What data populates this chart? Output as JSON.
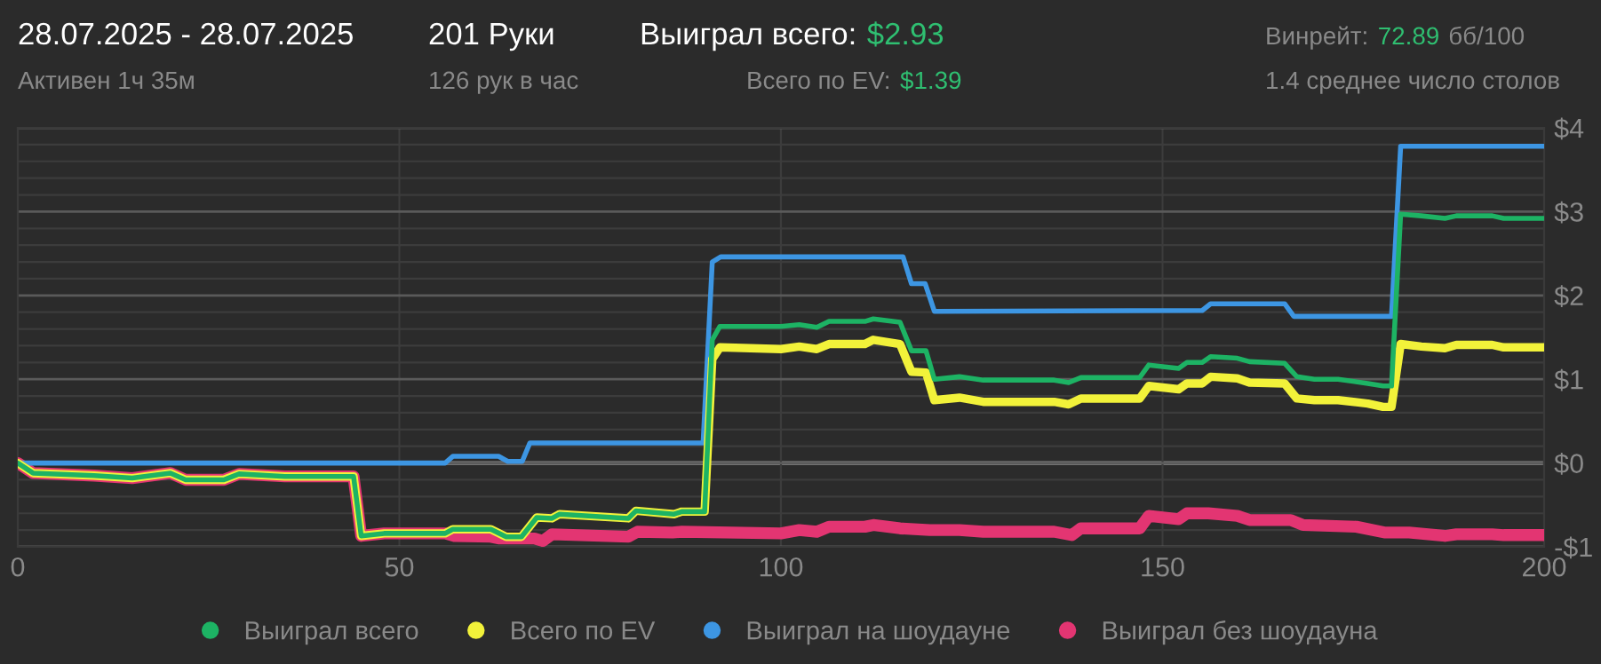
{
  "chart_data": {
    "type": "line",
    "title": "28.07.2025 - 28.07.2025",
    "subtitle": "Активен 1ч 35м",
    "annotations": [
      "201 Руки",
      "126 рук в час",
      "Выиграл всего:",
      "$2.93",
      "Всего по EV:",
      "$1.39",
      "Винрейт:",
      "72.89",
      "бб/100",
      "1.4 среднее число столов"
    ],
    "xlim": [
      0,
      200
    ],
    "ylim": [
      -1,
      4
    ],
    "xticks": [
      0,
      50,
      100,
      150,
      200
    ],
    "yticks": [
      {
        "value": -1,
        "label": "-$1"
      },
      {
        "value": 0,
        "label": "$0"
      },
      {
        "value": 1,
        "label": "$1"
      },
      {
        "value": 2,
        "label": "$2"
      },
      {
        "value": 3,
        "label": "$3"
      },
      {
        "value": 4,
        "label": "$4"
      }
    ],
    "grid": true,
    "legend": "bottom",
    "marker": "none",
    "line_style": "solid",
    "ref_lines": [
      {
        "axis": "y",
        "value": 0,
        "color": "#8c8c8c"
      }
    ],
    "series": [
      {
        "name": "Выиграл всего",
        "color": "#1db364",
        "x": [
          0,
          2,
          10,
          15,
          20,
          22,
          27,
          29,
          35,
          44,
          45,
          48,
          56,
          57,
          62,
          64,
          66,
          68,
          70,
          71,
          80,
          81,
          86,
          87,
          90,
          91,
          92,
          100,
          102.4,
          104.7,
          106.3,
          111,
          112.1,
          115.6,
          117.1,
          119,
          120.1,
          123.4,
          126.5,
          135.8,
          137.7,
          139.3,
          147,
          148.2,
          152.1,
          153.2,
          155.2,
          156.3,
          159.8,
          161.4,
          166,
          167.6,
          169.9,
          173,
          176.9,
          178.9,
          180,
          181.2,
          183.9,
          187,
          188.5,
          193.2,
          194.7,
          200
        ],
        "values": [
          0,
          -0.12,
          -0.15,
          -0.18,
          -0.12,
          -0.2,
          -0.2,
          -0.13,
          -0.16,
          -0.16,
          -0.87,
          -0.84,
          -0.84,
          -0.79,
          -0.79,
          -0.88,
          -0.88,
          -0.65,
          -0.66,
          -0.61,
          -0.66,
          -0.57,
          -0.61,
          -0.58,
          -0.58,
          1.47,
          1.63,
          1.63,
          1.65,
          1.62,
          1.69,
          1.69,
          1.72,
          1.68,
          1.34,
          1.34,
          1.0,
          1.03,
          0.99,
          0.99,
          0.96,
          1.02,
          1.02,
          1.17,
          1.13,
          1.2,
          1.2,
          1.27,
          1.25,
          1.21,
          1.19,
          1.03,
          1.0,
          1.0,
          0.95,
          0.92,
          0.92,
          2.97,
          2.95,
          2.92,
          2.95,
          2.95,
          2.92,
          2.92
        ]
      },
      {
        "name": "Всего по EV",
        "color": "#f2f23a",
        "x": [
          0,
          2,
          10,
          15,
          20,
          22,
          27,
          29,
          35,
          44,
          45,
          48,
          56,
          57,
          62,
          64,
          66,
          68,
          70,
          71,
          80,
          81,
          86,
          87,
          90,
          91,
          92,
          100,
          102.4,
          104.7,
          106.3,
          111,
          112.1,
          115.6,
          117.1,
          119,
          120.1,
          123.4,
          126.5,
          135.8,
          137.7,
          139.3,
          147,
          148.2,
          152.1,
          153.2,
          155.2,
          156.3,
          159.8,
          161.4,
          166,
          167.6,
          169.9,
          173,
          176.9,
          178.9,
          180,
          181.2,
          183.9,
          187,
          188.5,
          193.2,
          194.7,
          200
        ],
        "values": [
          0,
          -0.12,
          -0.15,
          -0.18,
          -0.12,
          -0.2,
          -0.2,
          -0.13,
          -0.16,
          -0.16,
          -0.87,
          -0.84,
          -0.84,
          -0.79,
          -0.79,
          -0.88,
          -0.88,
          -0.65,
          -0.66,
          -0.61,
          -0.66,
          -0.57,
          -0.61,
          -0.58,
          -0.58,
          1.24,
          1.38,
          1.36,
          1.39,
          1.36,
          1.42,
          1.42,
          1.47,
          1.42,
          1.09,
          1.08,
          0.75,
          0.78,
          0.73,
          0.73,
          0.7,
          0.77,
          0.77,
          0.92,
          0.88,
          0.95,
          0.95,
          1.03,
          1.01,
          0.96,
          0.95,
          0.77,
          0.75,
          0.75,
          0.71,
          0.67,
          0.67,
          1.42,
          1.39,
          1.37,
          1.41,
          1.41,
          1.38,
          1.38
        ]
      },
      {
        "name": "Выиграл на шоудауне",
        "color": "#3d96e3",
        "x": [
          0,
          56,
          57,
          63,
          64.2,
          66.1,
          67.1,
          89.8,
          91,
          92.1,
          116,
          117.1,
          118.9,
          120.1,
          155.2,
          156.3,
          166,
          167.2,
          180,
          181.2,
          200
        ],
        "values": [
          0,
          0,
          0.08,
          0.08,
          0.02,
          0.02,
          0.24,
          0.24,
          2.4,
          2.46,
          2.46,
          2.14,
          2.14,
          1.81,
          1.82,
          1.9,
          1.9,
          1.75,
          1.75,
          3.78,
          3.78
        ]
      },
      {
        "name": "Выиграл без шоудауна",
        "color": "#e33572",
        "x": [
          0,
          2,
          10,
          15,
          20,
          22,
          27,
          29,
          35,
          44,
          45,
          48,
          56,
          57.2,
          62,
          63,
          67.7,
          68.8,
          70,
          80,
          81.2,
          85.8,
          87,
          100,
          102.4,
          104.7,
          106.3,
          111,
          112.1,
          115.6,
          119.5,
          123.4,
          126.5,
          135.8,
          138.1,
          139.3,
          147,
          148.2,
          152.1,
          153.2,
          156,
          159.8,
          161.4,
          166.8,
          168.4,
          175.4,
          179.2,
          182.3,
          187,
          188.5,
          193.2,
          194.7,
          200
        ],
        "values": [
          0,
          -0.12,
          -0.15,
          -0.18,
          -0.12,
          -0.2,
          -0.2,
          -0.13,
          -0.16,
          -0.16,
          -0.87,
          -0.84,
          -0.84,
          -0.87,
          -0.88,
          -0.9,
          -0.9,
          -0.93,
          -0.85,
          -0.88,
          -0.82,
          -0.83,
          -0.82,
          -0.84,
          -0.8,
          -0.82,
          -0.76,
          -0.76,
          -0.74,
          -0.78,
          -0.8,
          -0.8,
          -0.82,
          -0.82,
          -0.86,
          -0.78,
          -0.78,
          -0.63,
          -0.67,
          -0.6,
          -0.6,
          -0.63,
          -0.68,
          -0.68,
          -0.74,
          -0.76,
          -0.83,
          -0.83,
          -0.87,
          -0.85,
          -0.85,
          -0.86,
          -0.86
        ]
      }
    ]
  }
}
